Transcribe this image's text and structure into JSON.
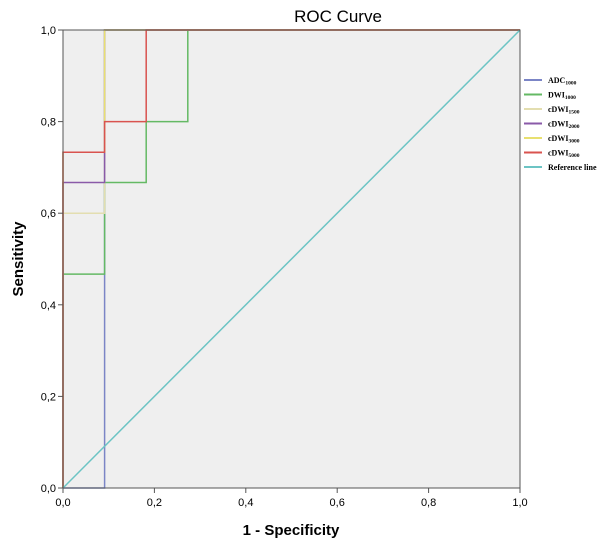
{
  "chart_data": {
    "type": "line",
    "title": "ROC Curve",
    "xlabel": "1 - Specificity",
    "ylabel": "Sensitivity",
    "xlim": [
      0,
      1
    ],
    "ylim": [
      0,
      1
    ],
    "xticks": [
      "0,0",
      "0,2",
      "0,4",
      "0,6",
      "0,8",
      "1,0"
    ],
    "yticks": [
      "0,0",
      "0,2",
      "0,4",
      "0,6",
      "0,8",
      "1,0"
    ],
    "grid": false,
    "legend_position": "right",
    "plot_background": "#efefef",
    "series": [
      {
        "name": "ADC",
        "name_sub": "1000",
        "color": "#7b85c6",
        "x": [
          0,
          0.091,
          0.091,
          1
        ],
        "y": [
          0,
          0,
          1,
          1
        ]
      },
      {
        "name": "DWI",
        "name_sub": "1000",
        "color": "#64b964",
        "x": [
          0,
          0,
          0.091,
          0.091,
          0.182,
          0.182,
          0.273,
          0.273,
          1
        ],
        "y": [
          0,
          0.467,
          0.467,
          0.667,
          0.667,
          0.8,
          0.8,
          1,
          1
        ]
      },
      {
        "name": "cDWI",
        "name_sub": "1500",
        "color": "#e3deb0",
        "x": [
          0,
          0,
          0.091,
          0.091,
          1
        ],
        "y": [
          0,
          0.6,
          0.6,
          1,
          1
        ]
      },
      {
        "name": "cDWI",
        "name_sub": "2000",
        "color": "#8a5aa8",
        "x": [
          0,
          0,
          0.091,
          0.091,
          1
        ],
        "y": [
          0,
          0.667,
          0.667,
          1,
          1
        ]
      },
      {
        "name": "cDWI",
        "name_sub": "3000",
        "color": "#e8e070",
        "x": [
          0,
          0,
          0.091,
          0.091,
          1
        ],
        "y": [
          0,
          0.733,
          0.733,
          1,
          1
        ]
      },
      {
        "name": "cDWI",
        "name_sub": "5000",
        "color": "#d9534f",
        "x": [
          0,
          0,
          0.091,
          0.091,
          0.182,
          0.182,
          1
        ],
        "y": [
          0,
          0.733,
          0.733,
          0.8,
          0.8,
          1,
          1
        ]
      },
      {
        "name": "Reference line",
        "name_sub": "",
        "color": "#6cc4c4",
        "x": [
          0,
          1
        ],
        "y": [
          0,
          1
        ]
      }
    ]
  }
}
